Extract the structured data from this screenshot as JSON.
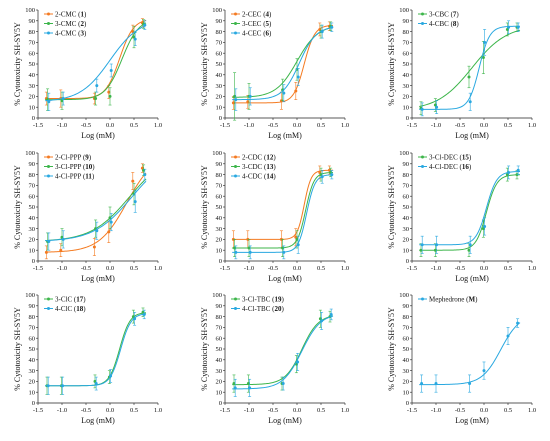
{
  "figure": {
    "ylabel_text": "% Cytotoxicity SH-SY5Y",
    "xlabel_text": "Log (mM)"
  },
  "chart_data": [
    {
      "type": "line",
      "xlabel": "Log (mM)",
      "ylabel": "% Cytotoxicity SH-SY5Y",
      "xlim": [
        -1.5,
        1.0
      ],
      "ylim": [
        0,
        100
      ],
      "xticks": [
        -1.5,
        -1.0,
        -0.5,
        0.0,
        0.5,
        1.0
      ],
      "yticks": [
        0,
        10,
        20,
        30,
        40,
        50,
        60,
        70,
        80,
        90,
        100
      ],
      "x": [
        -1.3,
        -1.0,
        -0.3,
        0.0,
        0.5,
        0.7
      ],
      "series": [
        {
          "name": "2-CMC",
          "id": "1",
          "color": "#f47a20",
          "values": [
            18,
            18,
            18,
            24,
            80,
            88
          ],
          "errors": [
            6,
            8,
            5,
            6,
            6,
            4
          ],
          "fit": {
            "bottom": 18,
            "top": 92,
            "logEC50": 0.2,
            "hill": 3
          }
        },
        {
          "name": "3-CMC",
          "id": "2",
          "color": "#3cb54a",
          "values": [
            17,
            16,
            18,
            20,
            75,
            87
          ],
          "errors": [
            10,
            8,
            6,
            8,
            10,
            4
          ],
          "fit": {
            "bottom": 17,
            "top": 92,
            "logEC50": 0.25,
            "hill": 2.5
          }
        },
        {
          "name": "4-CMC",
          "id": "3",
          "color": "#29a8e0",
          "values": [
            15,
            18,
            30,
            44,
            73,
            86
          ],
          "errors": [
            8,
            6,
            6,
            6,
            6,
            4
          ],
          "fit": {
            "bottom": 15,
            "top": 92,
            "logEC50": 0.0,
            "hill": 1.4
          }
        }
      ]
    },
    {
      "type": "line",
      "xlabel": "Log (mM)",
      "ylabel": "% Cytotoxicity SH-SY5Y",
      "xlim": [
        -1.5,
        1.0
      ],
      "ylim": [
        0,
        100
      ],
      "xticks": [
        -1.5,
        -1.0,
        -0.5,
        0.0,
        0.5,
        1.0
      ],
      "yticks": [
        0,
        10,
        20,
        30,
        40,
        50,
        60,
        70,
        80,
        90,
        100
      ],
      "x": [
        -1.3,
        -1.0,
        -0.3,
        0.0,
        0.5,
        0.7
      ],
      "series": [
        {
          "name": "2-CEC",
          "id": "4",
          "color": "#f47a20",
          "values": [
            14,
            15,
            16,
            25,
            82,
            85
          ],
          "errors": [
            6,
            6,
            8,
            8,
            6,
            4
          ],
          "fit": {
            "bottom": 14,
            "top": 86,
            "logEC50": 0.15,
            "hill": 4
          }
        },
        {
          "name": "3-CEC",
          "id": "5",
          "color": "#3cb54a",
          "values": [
            20,
            20,
            26,
            45,
            80,
            85
          ],
          "errors": [
            22,
            12,
            10,
            10,
            6,
            4
          ],
          "fit": {
            "bottom": 19,
            "top": 86,
            "logEC50": 0.0,
            "hill": 2
          }
        },
        {
          "name": "4-CEC",
          "id": "6",
          "color": "#29a8e0",
          "values": [
            17,
            20,
            23,
            38,
            80,
            84
          ],
          "errors": [
            10,
            8,
            8,
            8,
            6,
            4
          ],
          "fit": {
            "bottom": 17,
            "top": 85,
            "logEC50": 0.05,
            "hill": 2.5
          }
        }
      ]
    },
    {
      "type": "line",
      "xlabel": "Log (mM)",
      "ylabel": "% Cytotoxicity SH-SY5Y",
      "xlim": [
        -1.5,
        1.0
      ],
      "ylim": [
        0,
        100
      ],
      "xticks": [
        -1.5,
        -1.0,
        -0.5,
        0.0,
        0.5,
        1.0
      ],
      "yticks": [
        0,
        10,
        20,
        30,
        40,
        50,
        60,
        70,
        80,
        90,
        100
      ],
      "x": [
        -1.3,
        -1.0,
        -0.3,
        0.0,
        0.5,
        0.7
      ],
      "series": [
        {
          "name": "3-CBC",
          "id": "7",
          "color": "#3cb54a",
          "values": [
            9,
            12,
            38,
            56,
            82,
            84
          ],
          "errors": [
            6,
            6,
            10,
            15,
            6,
            4
          ],
          "fit": {
            "bottom": 7,
            "top": 86,
            "logEC50": -0.25,
            "hill": 1.2
          }
        },
        {
          "name": "4-CBC",
          "id": "8",
          "color": "#29a8e0",
          "values": [
            8,
            10,
            15,
            70,
            84,
            84
          ],
          "errors": [
            6,
            6,
            8,
            12,
            6,
            4
          ],
          "fit": {
            "bottom": 8,
            "top": 85,
            "logEC50": -0.1,
            "hill": 4
          }
        }
      ]
    },
    {
      "type": "line",
      "xlabel": "Log (mM)",
      "ylabel": "% Cytotoxicity SH-SY5Y",
      "xlim": [
        -1.5,
        1.0
      ],
      "ylim": [
        0,
        100
      ],
      "xticks": [
        -1.5,
        -1.0,
        -0.5,
        0.0,
        0.5,
        1.0
      ],
      "yticks": [
        0,
        10,
        20,
        30,
        40,
        50,
        60,
        70,
        80,
        90,
        100
      ],
      "x": [
        -1.3,
        -1.0,
        -0.3,
        0.0,
        0.5,
        0.7
      ],
      "series": [
        {
          "name": "2-Cl-PPP",
          "id": "9",
          "color": "#f47a20",
          "values": [
            8,
            10,
            13,
            27,
            74,
            86
          ],
          "errors": [
            6,
            6,
            8,
            10,
            8,
            4
          ],
          "fit": {
            "bottom": 8,
            "top": 100,
            "logEC50": 0.35,
            "hill": 1.5
          }
        },
        {
          "name": "3-Cl-PPP",
          "id": "10",
          "color": "#3cb54a",
          "values": [
            18,
            22,
            30,
            40,
            62,
            84
          ],
          "errors": [
            8,
            8,
            8,
            10,
            10,
            5
          ],
          "fit": {
            "bottom": 18,
            "top": 100,
            "logEC50": 0.4,
            "hill": 1.1
          }
        },
        {
          "name": "4-Cl-PPP",
          "id": "11",
          "color": "#29a8e0",
          "values": [
            18,
            20,
            28,
            36,
            55,
            80
          ],
          "errors": [
            8,
            8,
            8,
            8,
            10,
            5
          ],
          "fit": {
            "bottom": 18,
            "top": 100,
            "logEC50": 0.45,
            "hill": 1.1
          }
        }
      ]
    },
    {
      "type": "line",
      "xlabel": "Log (mM)",
      "ylabel": "% Cytotoxicity SH-SY5Y",
      "xlim": [
        -1.5,
        1.0
      ],
      "ylim": [
        0,
        100
      ],
      "xticks": [
        -1.5,
        -1.0,
        -0.5,
        0.0,
        0.5,
        1.0
      ],
      "yticks": [
        0,
        10,
        20,
        30,
        40,
        50,
        60,
        70,
        80,
        90,
        100
      ],
      "x": [
        -1.3,
        -1.0,
        -0.3,
        0.0,
        0.5,
        0.7
      ],
      "series": [
        {
          "name": "2-CDC",
          "id": "12",
          "color": "#f47a20",
          "values": [
            20,
            20,
            20,
            22,
            82,
            84
          ],
          "errors": [
            8,
            8,
            8,
            8,
            6,
            4
          ],
          "fit": {
            "bottom": 20,
            "top": 84,
            "logEC50": 0.15,
            "hill": 6
          }
        },
        {
          "name": "3-CDC",
          "id": "13",
          "color": "#3cb54a",
          "values": [
            12,
            12,
            12,
            20,
            80,
            82
          ],
          "errors": [
            8,
            8,
            8,
            8,
            6,
            4
          ],
          "fit": {
            "bottom": 12,
            "top": 82,
            "logEC50": 0.18,
            "hill": 5
          }
        },
        {
          "name": "4-CDC",
          "id": "14",
          "color": "#29a8e0",
          "values": [
            8,
            8,
            8,
            15,
            78,
            80
          ],
          "errors": [
            6,
            6,
            6,
            8,
            6,
            4
          ],
          "fit": {
            "bottom": 8,
            "top": 80,
            "logEC50": 0.2,
            "hill": 5
          }
        }
      ]
    },
    {
      "type": "line",
      "xlabel": "Log (mM)",
      "ylabel": "% Cytotoxicity SH-SY5Y",
      "xlim": [
        -1.5,
        1.0
      ],
      "ylim": [
        0,
        100
      ],
      "xticks": [
        -1.5,
        -1.0,
        -0.5,
        0.0,
        0.5,
        1.0
      ],
      "yticks": [
        0,
        10,
        20,
        30,
        40,
        50,
        60,
        70,
        80,
        90,
        100
      ],
      "x": [
        -1.3,
        -1.0,
        -0.3,
        0.0,
        0.5,
        0.7
      ],
      "series": [
        {
          "name": "3-Cl-DEC",
          "id": "15",
          "color": "#3cb54a",
          "values": [
            10,
            10,
            10,
            30,
            80,
            80
          ],
          "errors": [
            6,
            6,
            6,
            8,
            6,
            4
          ],
          "fit": {
            "bottom": 10,
            "top": 80,
            "logEC50": 0.05,
            "hill": 4
          }
        },
        {
          "name": "4-Cl-DEC",
          "id": "16",
          "color": "#29a8e0",
          "values": [
            15,
            15,
            15,
            32,
            82,
            84
          ],
          "errors": [
            8,
            8,
            8,
            8,
            6,
            4
          ],
          "fit": {
            "bottom": 15,
            "top": 83,
            "logEC50": 0.05,
            "hill": 4
          }
        }
      ]
    },
    {
      "type": "line",
      "xlabel": "Log (mM)",
      "ylabel": "% Cytotoxicity SH-SY5Y",
      "xlim": [
        -1.5,
        1.0
      ],
      "ylim": [
        0,
        100
      ],
      "xticks": [
        -1.5,
        -1.0,
        -0.5,
        0.0,
        0.5,
        1.0
      ],
      "yticks": [
        0,
        10,
        20,
        30,
        40,
        50,
        60,
        70,
        80,
        90,
        100
      ],
      "x": [
        -1.3,
        -1.0,
        -0.3,
        0.0,
        0.5,
        0.7
      ],
      "series": [
        {
          "name": "3-ClC",
          "id": "17",
          "color": "#3cb54a",
          "values": [
            16,
            16,
            20,
            24,
            80,
            84
          ],
          "errors": [
            8,
            8,
            6,
            6,
            6,
            4
          ],
          "fit": {
            "bottom": 16,
            "top": 84,
            "logEC50": 0.2,
            "hill": 4
          }
        },
        {
          "name": "4-ClC",
          "id": "18",
          "color": "#29a8e0",
          "values": [
            16,
            16,
            18,
            25,
            78,
            82
          ],
          "errors": [
            8,
            8,
            6,
            6,
            6,
            4
          ],
          "fit": {
            "bottom": 16,
            "top": 83,
            "logEC50": 0.22,
            "hill": 4
          }
        }
      ]
    },
    {
      "type": "line",
      "xlabel": "Log (mM)",
      "ylabel": "% Cytotoxicity SH-SY5Y",
      "xlim": [
        -1.5,
        1.0
      ],
      "ylim": [
        0,
        100
      ],
      "xticks": [
        -1.5,
        -1.0,
        -0.5,
        0.0,
        0.5,
        1.0
      ],
      "yticks": [
        0,
        10,
        20,
        30,
        40,
        50,
        60,
        70,
        80,
        90,
        100
      ],
      "x": [
        -1.3,
        -1.0,
        -0.3,
        0.0,
        0.5,
        0.7
      ],
      "series": [
        {
          "name": "3-Cl-TBC",
          "id": "19",
          "color": "#3cb54a",
          "values": [
            18,
            18,
            18,
            36,
            78,
            80
          ],
          "errors": [
            8,
            8,
            6,
            8,
            8,
            5
          ],
          "fit": {
            "bottom": 17,
            "top": 82,
            "logEC50": 0.1,
            "hill": 2.5
          }
        },
        {
          "name": "4-Cl-TBC",
          "id": "20",
          "color": "#29a8e0",
          "values": [
            14,
            14,
            18,
            38,
            76,
            82
          ],
          "errors": [
            8,
            8,
            6,
            8,
            8,
            5
          ],
          "fit": {
            "bottom": 13,
            "top": 83,
            "logEC50": 0.1,
            "hill": 2.2
          }
        }
      ]
    },
    {
      "type": "line",
      "xlabel": "Log (mM)",
      "ylabel": "% Cytotoxicity SH-SY5Y",
      "xlim": [
        -1.5,
        1.0
      ],
      "ylim": [
        0,
        100
      ],
      "xticks": [
        -1.5,
        -1.0,
        -0.5,
        0.0,
        0.5,
        1.0
      ],
      "yticks": [
        0,
        10,
        20,
        30,
        40,
        50,
        60,
        70,
        80,
        90,
        100
      ],
      "x": [
        -1.3,
        -1.0,
        -0.3,
        0.0,
        0.5,
        0.7
      ],
      "series": [
        {
          "name": "Mephedrone",
          "id": "M",
          "color": "#29a8e0",
          "values": [
            18,
            18,
            18,
            30,
            62,
            74
          ],
          "errors": [
            8,
            8,
            8,
            8,
            8,
            4
          ],
          "fit": {
            "bottom": 17,
            "top": 82,
            "logEC50": 0.35,
            "hill": 2.2
          }
        }
      ]
    }
  ]
}
